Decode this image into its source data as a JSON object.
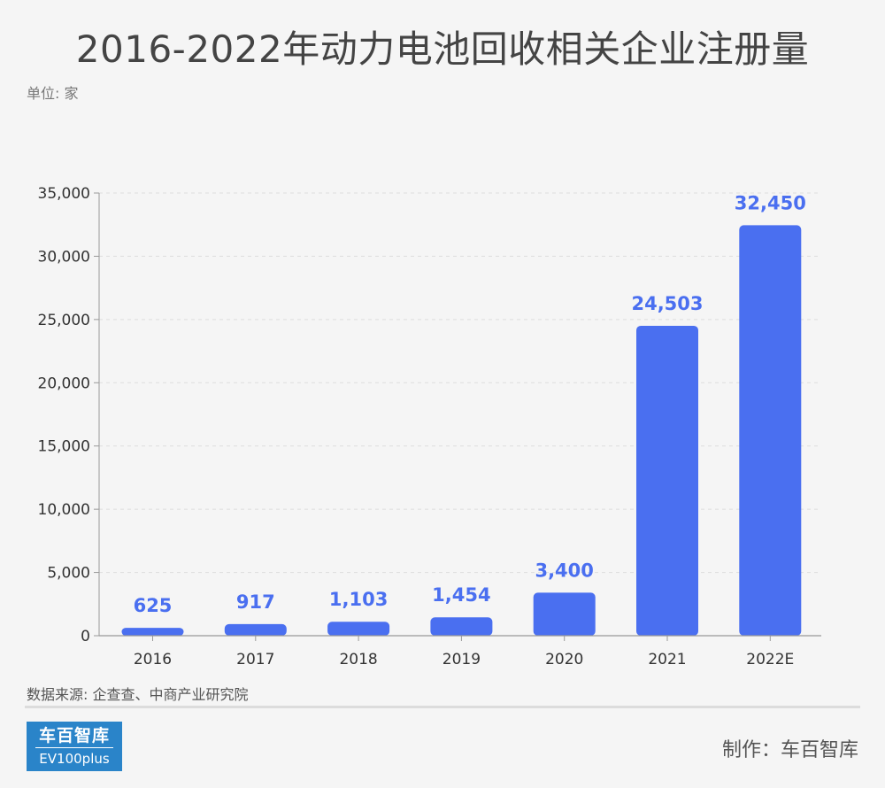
{
  "header": {
    "title": "2016-2022年动力电池回收相关企业注册量",
    "unit": "单位: 家"
  },
  "footer": {
    "source": "数据来源: 企查查、中商产业研究院",
    "logo_cn": "车百智库",
    "logo_en": "EV100plus",
    "credit": "制作：车百智库"
  },
  "colors": {
    "bar": "#4a6ff0",
    "label": "#4a6ff0",
    "grid": "#dddddd",
    "axis": "#999999",
    "text": "#333333"
  },
  "chart_data": {
    "type": "bar",
    "title": "2016-2022年动力电池回收相关企业注册量",
    "xlabel": "",
    "ylabel": "单位: 家",
    "categories": [
      "2016",
      "2017",
      "2018",
      "2019",
      "2020",
      "2021",
      "2022E"
    ],
    "values": [
      625,
      917,
      1103,
      1454,
      3400,
      24503,
      32450
    ],
    "value_labels": [
      "625",
      "917",
      "1,103",
      "1,454",
      "3,400",
      "24,503",
      "32,450"
    ],
    "yticks": [
      0,
      5000,
      10000,
      15000,
      20000,
      25000,
      30000,
      35000
    ],
    "ytick_labels": [
      "0",
      "5,000",
      "10,000",
      "15,000",
      "20,000",
      "25,000",
      "30,000",
      "35,000"
    ],
    "ylim": [
      0,
      35000
    ],
    "grid": true,
    "legend": "none"
  }
}
